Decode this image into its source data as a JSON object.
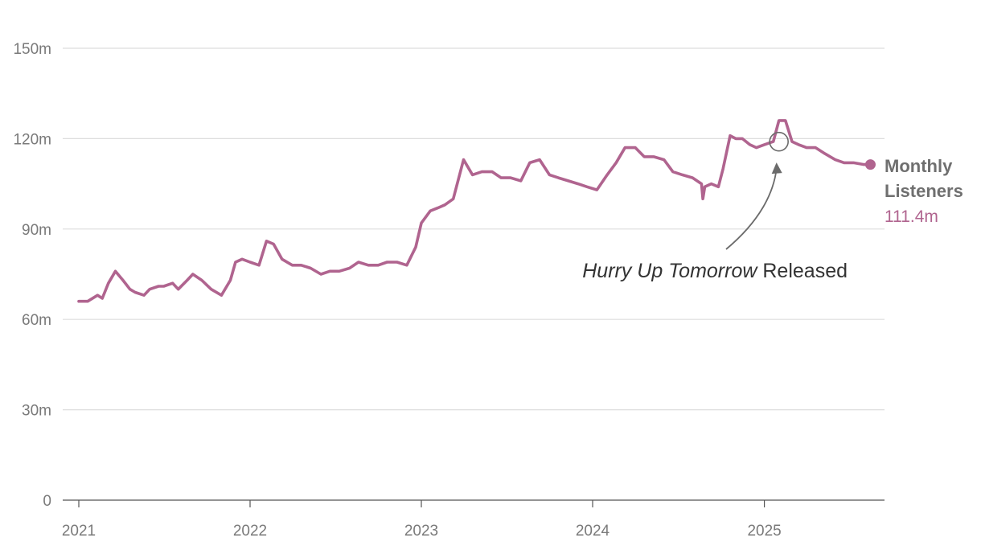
{
  "colors": {
    "series": "#b0648f",
    "annotation": "#6b6b6b"
  },
  "chart_data": {
    "type": "line",
    "title": "",
    "xlabel": "",
    "ylabel": "",
    "ylim": [
      0,
      150
    ],
    "xlim": [
      "2021-01-01",
      "2025-09-30"
    ],
    "grid": true,
    "y_ticks": [
      {
        "value": 0,
        "label": "0"
      },
      {
        "value": 30,
        "label": "30m"
      },
      {
        "value": 60,
        "label": "60m"
      },
      {
        "value": 90,
        "label": "90m"
      },
      {
        "value": 120,
        "label": "120m"
      },
      {
        "value": 150,
        "label": "150m"
      }
    ],
    "x_ticks": [
      {
        "value": "2021-01-01",
        "label": "2021"
      },
      {
        "value": "2022-01-01",
        "label": "2022"
      },
      {
        "value": "2023-01-01",
        "label": "2023"
      },
      {
        "value": "2024-01-01",
        "label": "2024"
      },
      {
        "value": "2025-01-01",
        "label": "2025"
      }
    ],
    "series": [
      {
        "name": "Monthly Listeners",
        "end_label": "111.4m",
        "x": [
          "2021-01-01",
          "2021-01-20",
          "2021-02-10",
          "2021-02-20",
          "2021-03-05",
          "2021-03-20",
          "2021-04-05",
          "2021-04-20",
          "2021-05-01",
          "2021-05-20",
          "2021-06-01",
          "2021-06-20",
          "2021-07-01",
          "2021-07-20",
          "2021-08-01",
          "2021-08-20",
          "2021-09-01",
          "2021-09-20",
          "2021-10-10",
          "2021-11-01",
          "2021-11-20",
          "2021-12-01",
          "2021-12-15",
          "2022-01-01",
          "2022-01-20",
          "2022-02-05",
          "2022-02-20",
          "2022-03-10",
          "2022-04-01",
          "2022-04-20",
          "2022-05-10",
          "2022-06-01",
          "2022-06-20",
          "2022-07-10",
          "2022-08-01",
          "2022-08-20",
          "2022-09-10",
          "2022-10-01",
          "2022-10-20",
          "2022-11-10",
          "2022-12-01",
          "2022-12-20",
          "2023-01-01",
          "2023-01-20",
          "2023-02-05",
          "2023-02-20",
          "2023-03-10",
          "2023-04-01",
          "2023-04-20",
          "2023-05-10",
          "2023-06-01",
          "2023-06-20",
          "2023-07-10",
          "2023-08-01",
          "2023-08-20",
          "2023-09-10",
          "2023-10-01",
          "2023-10-20",
          "2023-11-10",
          "2023-12-01",
          "2023-12-20",
          "2024-01-10",
          "2024-02-01",
          "2024-02-20",
          "2024-03-10",
          "2024-04-01",
          "2024-04-20",
          "2024-05-10",
          "2024-06-01",
          "2024-06-20",
          "2024-07-10",
          "2024-08-01",
          "2024-08-20",
          "2024-08-23",
          "2024-08-27",
          "2024-09-10",
          "2024-09-25",
          "2024-10-05",
          "2024-10-20",
          "2024-11-01",
          "2024-11-15",
          "2024-12-01",
          "2024-12-15",
          "2025-01-01",
          "2025-01-20",
          "2025-02-01",
          "2025-02-15",
          "2025-03-01",
          "2025-03-15",
          "2025-04-01",
          "2025-04-20",
          "2025-05-10",
          "2025-06-01",
          "2025-06-20",
          "2025-07-10",
          "2025-08-01",
          "2025-08-15"
        ],
        "values": [
          66,
          66,
          68,
          67,
          72,
          76,
          73,
          70,
          69,
          68,
          70,
          71,
          71,
          72,
          70,
          73,
          75,
          73,
          70,
          68,
          73,
          79,
          80,
          79,
          78,
          86,
          85,
          80,
          78,
          78,
          77,
          75,
          76,
          76,
          77,
          79,
          78,
          78,
          79,
          79,
          78,
          84,
          92,
          96,
          97,
          98,
          100,
          113,
          108,
          109,
          109,
          107,
          107,
          106,
          112,
          113,
          108,
          107,
          106,
          105,
          104,
          103,
          108,
          112,
          117,
          117,
          114,
          114,
          113,
          109,
          108,
          107,
          105,
          100,
          104,
          105,
          104,
          110,
          121,
          120,
          120,
          118,
          117,
          118,
          119,
          126,
          126,
          119,
          118,
          117,
          117,
          115,
          113,
          112,
          112,
          111.4,
          111.4
        ]
      }
    ],
    "annotations": [
      {
        "x": "2025-02-01",
        "y": 119,
        "text_italic": "Hurry Up Tomorrow",
        "text_rest": " Released"
      }
    ]
  }
}
